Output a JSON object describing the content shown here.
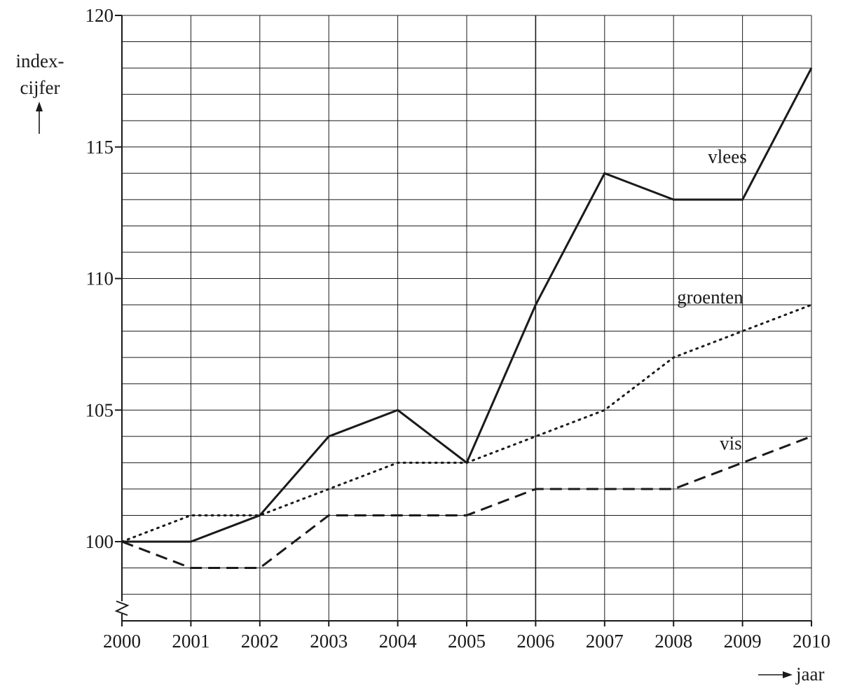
{
  "chart_data": {
    "type": "line",
    "title": "",
    "xlabel": "jaar",
    "ylabel_lines": [
      "index-",
      "cijfer"
    ],
    "x": [
      2000,
      2001,
      2002,
      2003,
      2004,
      2005,
      2006,
      2007,
      2008,
      2009,
      2010
    ],
    "x_tick_labels": [
      "2000",
      "2001",
      "2002",
      "2003",
      "2004",
      "2005",
      "2006",
      "2007",
      "2008",
      "2009",
      "2010"
    ],
    "y_tick_values": [
      100,
      105,
      110,
      115,
      120
    ],
    "y_tick_labels": [
      "100",
      "105",
      "110",
      "115",
      "120"
    ],
    "ylim": [
      97,
      120
    ],
    "y_axis_break": true,
    "grid": true,
    "minor_grid_step": 1,
    "series": [
      {
        "name": "vlees",
        "style": "solid",
        "values": [
          100,
          100,
          101,
          104,
          105,
          103,
          109,
          114,
          113,
          113,
          118
        ]
      },
      {
        "name": "groenten",
        "style": "dotted",
        "values": [
          100,
          101,
          101,
          102,
          103,
          103,
          104,
          105,
          107,
          108,
          109
        ]
      },
      {
        "name": "vis",
        "style": "dashed",
        "values": [
          100,
          99,
          99,
          101,
          101,
          101,
          102,
          102,
          102,
          103,
          104
        ]
      }
    ],
    "colors": {
      "line": "#1a1a1a",
      "grid": "#1a1a1a"
    }
  }
}
